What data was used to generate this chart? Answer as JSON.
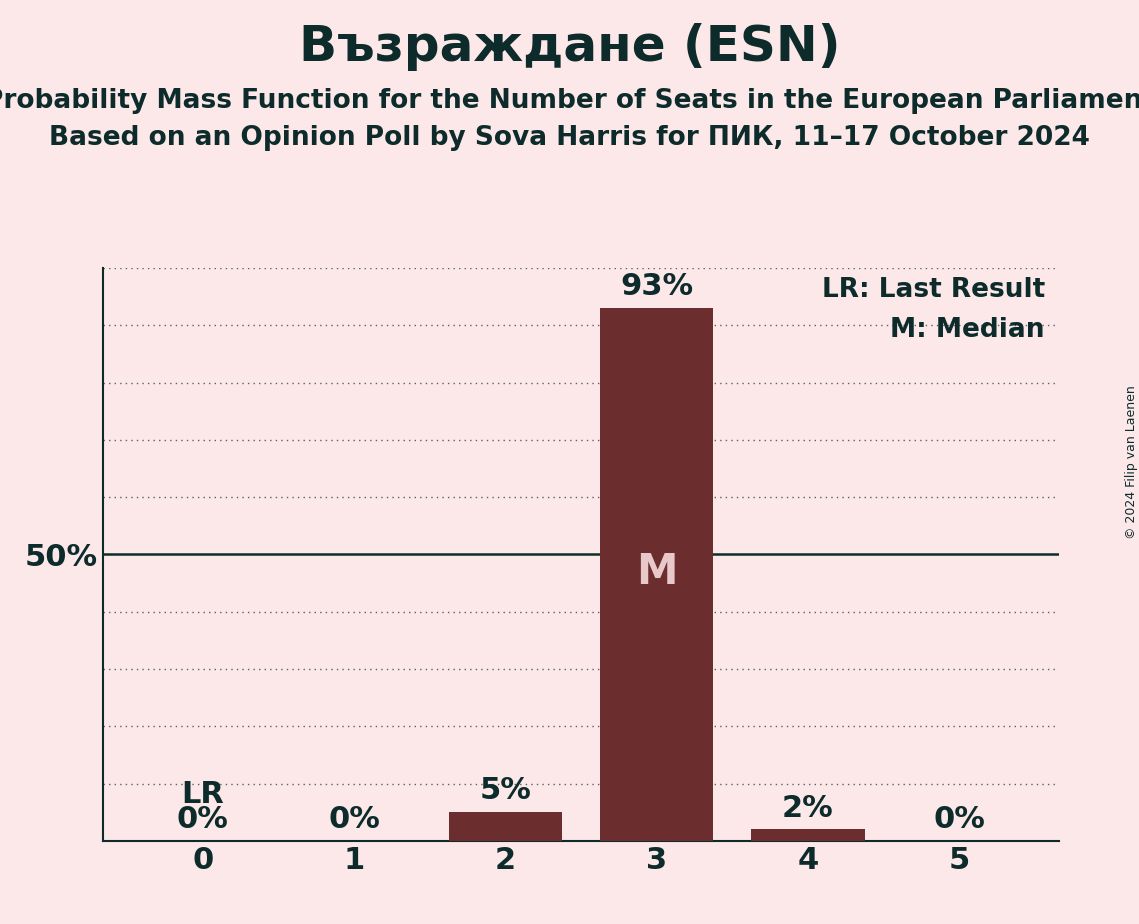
{
  "title": "Възраждане (ESN)",
  "subtitle1": "Probability Mass Function for the Number of Seats in the European Parliament",
  "subtitle2": "Based on an Opinion Poll by Sova Harris for ПИК, 11–17 October 2024",
  "copyright": "© 2024 Filip van Laenen",
  "seats": [
    0,
    1,
    2,
    3,
    4,
    5
  ],
  "probabilities": [
    0.0,
    0.0,
    0.05,
    0.93,
    0.02,
    0.0
  ],
  "bar_color": "#6b2d2d",
  "background_color": "#fce8e8",
  "text_color": "#0d2b2b",
  "median_seat": 3,
  "last_result_seat": 0,
  "legend_lr": "LR: Last Result",
  "legend_m": "M: Median",
  "median_label_color": "#e8c8c8",
  "ylim": [
    0,
    1.0
  ],
  "yticks": [
    0.0,
    0.1,
    0.2,
    0.3,
    0.4,
    0.5,
    0.6,
    0.7,
    0.8,
    0.9,
    1.0
  ],
  "dotted_line_color": "#0d2b2b",
  "solid_line_color": "#0d2b2b",
  "title_fontsize": 36,
  "subtitle_fontsize": 19,
  "tick_fontsize": 22,
  "label_fontsize": 22,
  "legend_fontsize": 19,
  "lr_fontsize": 22,
  "median_fontsize": 30
}
